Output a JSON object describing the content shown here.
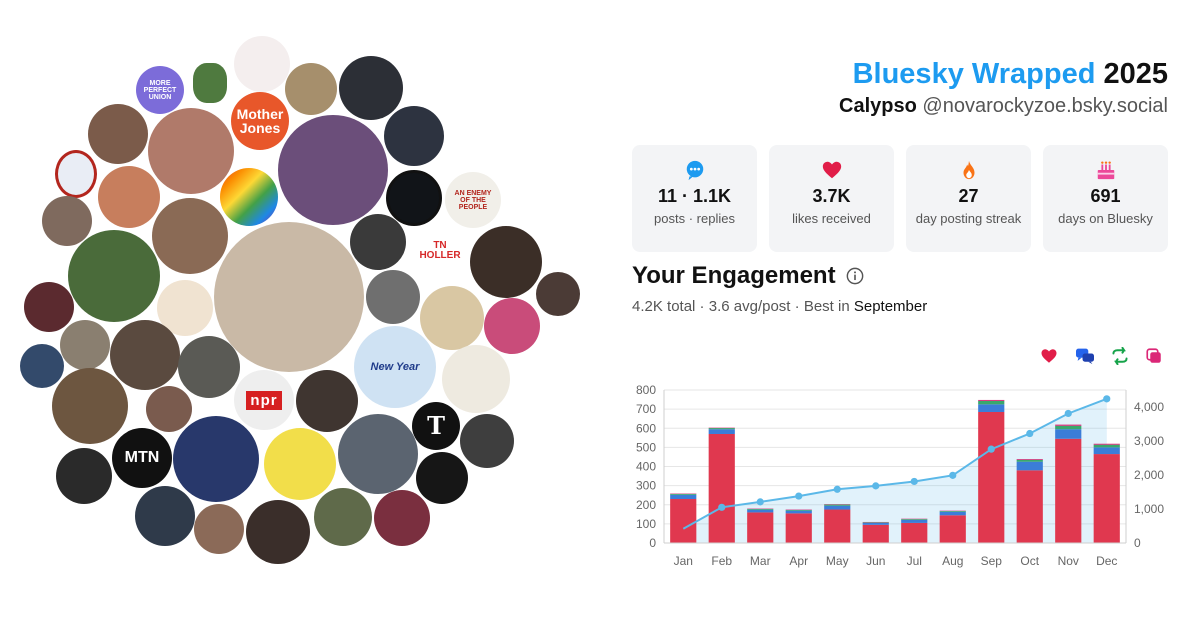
{
  "header": {
    "brand": "Bluesky Wrapped",
    "year": "2025",
    "display_name": "Calypso",
    "handle": "@novarockyzoe.bsky.social"
  },
  "stats": [
    {
      "icon": "speech-bubble-icon",
      "value": "11 · 1.1K",
      "caption": "posts · replies"
    },
    {
      "icon": "heart-icon",
      "value": "3.7K",
      "caption": "likes received"
    },
    {
      "icon": "flame-icon",
      "value": "27",
      "caption": "day posting streak"
    },
    {
      "icon": "cake-icon",
      "value": "691",
      "caption": "days on Bluesky"
    }
  ],
  "engagement": {
    "title": "Your Engagement",
    "total": "4.2K",
    "total_word": "total",
    "avg": "3.6 avg/post",
    "best_prefix": "Best in",
    "best_month": "September"
  },
  "legend": [
    {
      "icon": "heart-icon",
      "color": "#e11d48"
    },
    {
      "icon": "reply-icon",
      "color": "#2563eb"
    },
    {
      "icon": "repost-icon",
      "color": "#16a34a"
    },
    {
      "icon": "quote-icon",
      "color": "#db2777"
    }
  ],
  "bubbles": [
    {
      "label": "MORE PERFECT UNION",
      "bg": "#7c6cd9",
      "fg": "#ffffff"
    },
    {
      "label": "Mother Jones",
      "bg": "#e8572a",
      "fg": "#ffffff"
    },
    {
      "label": "AN ENEMY OF THE PEOPLE",
      "bg": "#f1efe9",
      "fg": "#b3261e"
    },
    {
      "label": "TN HOLLER",
      "bg": "#ffffff",
      "fg": "#d62828"
    },
    {
      "label": "New Year",
      "bg": "#cfe2f3",
      "fg": "#1f3b8a"
    },
    {
      "label": "npr",
      "bg": "#eeeeee",
      "fg": "#ffffff"
    },
    {
      "label": "MTN",
      "bg": "#111111",
      "fg": "#ffffff"
    },
    {
      "label": "T",
      "bg": "#111111",
      "fg": "#ffffff"
    }
  ],
  "chart_data": {
    "type": "bar",
    "categories": [
      "Jan",
      "Feb",
      "Mar",
      "Apr",
      "May",
      "Jun",
      "Jul",
      "Aug",
      "Sep",
      "Oct",
      "Nov",
      "Dec"
    ],
    "series": [
      {
        "values": [
          230,
          570,
          160,
          155,
          175,
          95,
          105,
          145,
          685,
          380,
          545,
          465
        ],
        "color": "#e0384f"
      },
      {
        "values": [
          22,
          25,
          14,
          14,
          20,
          10,
          16,
          18,
          40,
          45,
          50,
          35
        ],
        "color": "#3b7dd8"
      },
      {
        "values": [
          5,
          6,
          4,
          4,
          6,
          3,
          4,
          4,
          18,
          10,
          18,
          14
        ],
        "color": "#3aa76d"
      },
      {
        "values": [
          2,
          2,
          2,
          2,
          2,
          2,
          2,
          2,
          5,
          4,
          6,
          5
        ],
        "color": "#db2777"
      }
    ],
    "cumulative": [
      420,
      1050,
      1210,
      1380,
      1580,
      1680,
      1810,
      1990,
      2760,
      3220,
      3810,
      4240
    ],
    "ylim_left": [
      0,
      800
    ],
    "yticks_left": [
      0,
      100,
      200,
      300,
      400,
      500,
      600,
      700,
      800
    ],
    "ylim_right": [
      0,
      4500
    ],
    "yticks_right": [
      0,
      1000,
      2000,
      3000,
      4000
    ],
    "yticks_right_labels": [
      "0",
      "1,000",
      "2,000",
      "3,000",
      "4,000"
    ],
    "line_color": "#5bb8e8",
    "grid": true
  }
}
